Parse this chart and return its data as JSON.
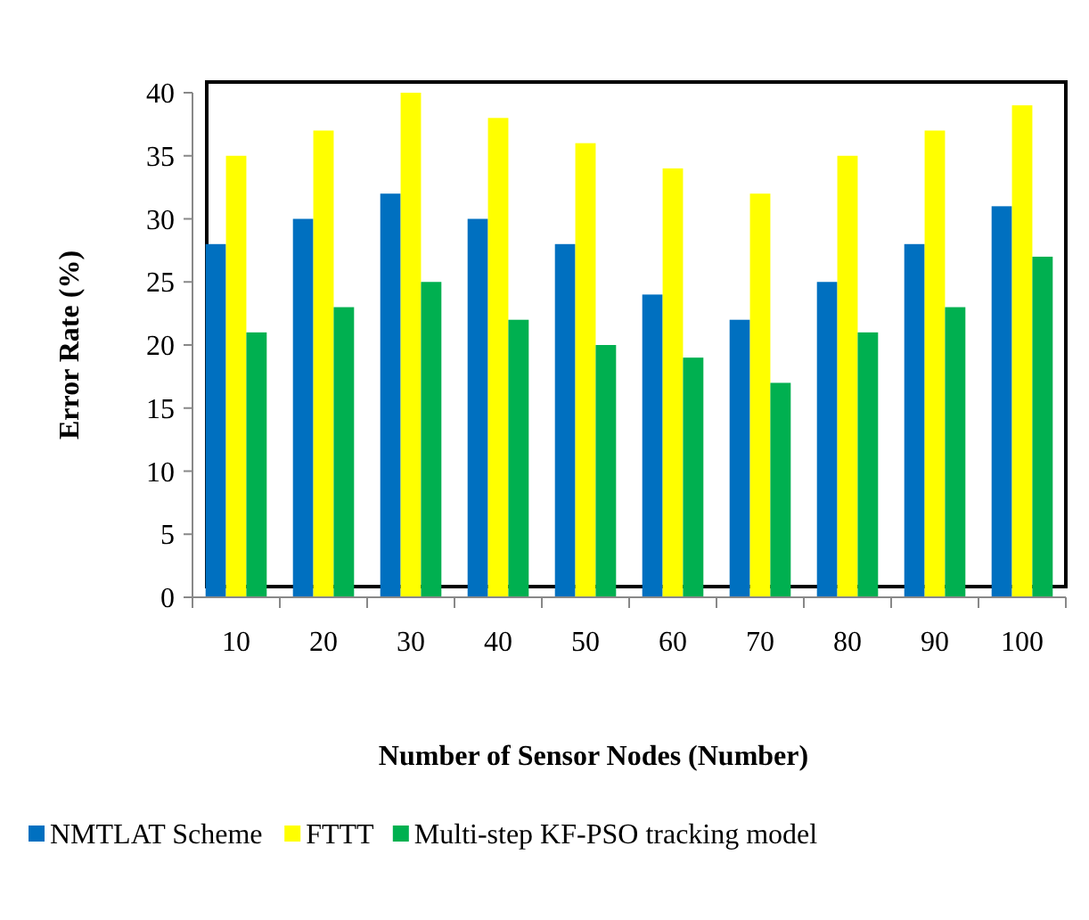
{
  "chart_data": {
    "type": "bar",
    "xlabel": "Number of Sensor Nodes (Number)",
    "ylabel": "Error Rate (%)",
    "categories": [
      "10",
      "20",
      "30",
      "40",
      "50",
      "60",
      "70",
      "80",
      "90",
      "100"
    ],
    "series": [
      {
        "name": "NMTLAT Scheme",
        "color": "#0070c0",
        "values": [
          28,
          30,
          32,
          30,
          28,
          24,
          22,
          25,
          28,
          31
        ]
      },
      {
        "name": "FTTT",
        "color": "#ffff00",
        "values": [
          35,
          37,
          40,
          38,
          36,
          34,
          32,
          35,
          37,
          39
        ]
      },
      {
        "name": "Multi-step KF-PSO tracking model",
        "color": "#00b050",
        "values": [
          21,
          23,
          25,
          22,
          20,
          19,
          17,
          21,
          23,
          27
        ]
      }
    ],
    "ylim": [
      0,
      40
    ],
    "yticks": [
      0,
      5,
      10,
      15,
      20,
      25,
      30,
      35,
      40
    ],
    "grid": false,
    "legend": "bottom"
  }
}
